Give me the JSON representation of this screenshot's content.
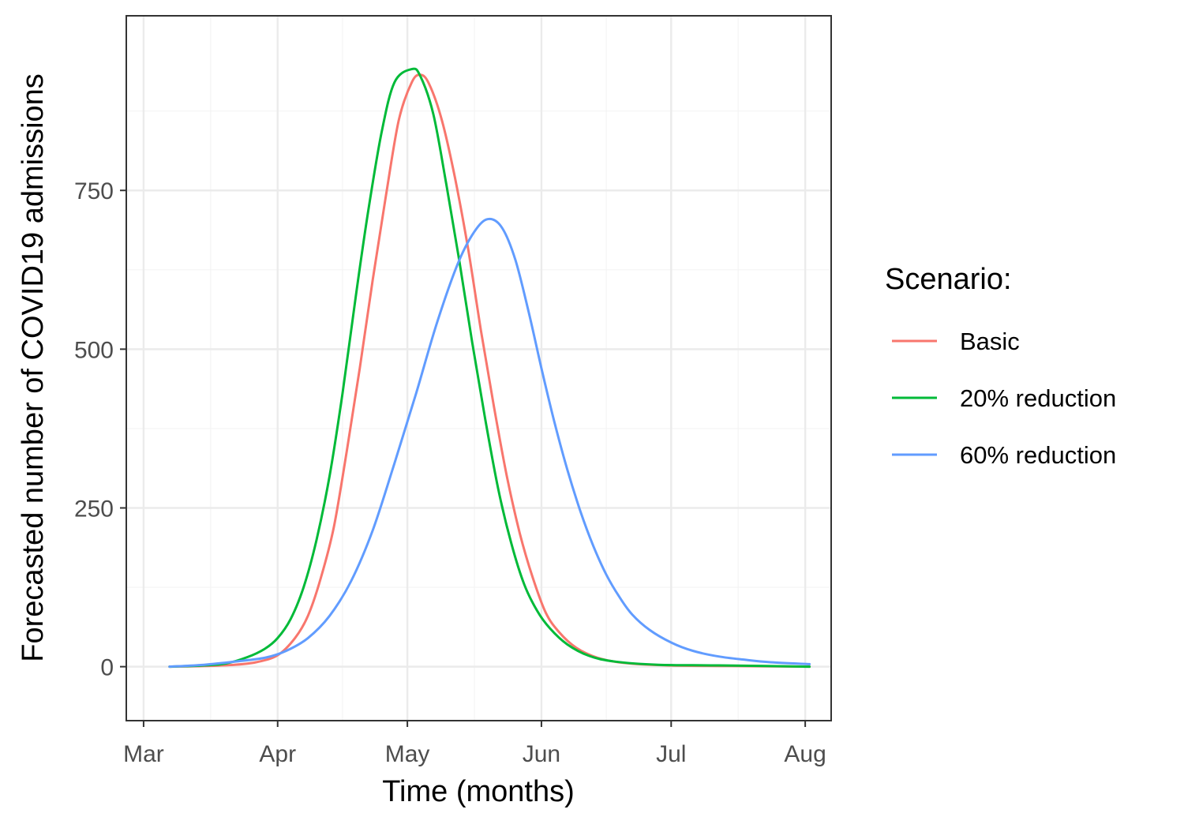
{
  "chart_data": {
    "type": "line",
    "xlabel": "Time (months)",
    "ylabel": "Forecasted number of COVID19 admissions",
    "x_axis": {
      "scale": "date",
      "range": [
        "2020-02-26",
        "2020-08-07"
      ],
      "ticks": [
        {
          "date": "2020-03-01",
          "label": "Mar"
        },
        {
          "date": "2020-04-01",
          "label": "Apr"
        },
        {
          "date": "2020-05-01",
          "label": "May"
        },
        {
          "date": "2020-06-01",
          "label": "Jun"
        },
        {
          "date": "2020-07-01",
          "label": "Jul"
        },
        {
          "date": "2020-08-01",
          "label": "Aug"
        }
      ]
    },
    "y_axis": {
      "range": [
        -85,
        1025
      ],
      "ticks": [
        0,
        250,
        500,
        750
      ],
      "tick_labels": [
        "0",
        "250",
        "500",
        "750"
      ]
    },
    "grid": true,
    "legend": {
      "title": "Scenario:",
      "position": "right"
    },
    "series": [
      {
        "name": "Basic",
        "color": "#F8766D",
        "points": [
          [
            "2020-03-07",
            0
          ],
          [
            "2020-03-15",
            1
          ],
          [
            "2020-03-22",
            3
          ],
          [
            "2020-03-27",
            7
          ],
          [
            "2020-04-01",
            18
          ],
          [
            "2020-04-05",
            45
          ],
          [
            "2020-04-08",
            80
          ],
          [
            "2020-04-11",
            140
          ],
          [
            "2020-04-14",
            220
          ],
          [
            "2020-04-17",
            340
          ],
          [
            "2020-04-20",
            470
          ],
          [
            "2020-04-23",
            610
          ],
          [
            "2020-04-26",
            740
          ],
          [
            "2020-04-29",
            860
          ],
          [
            "2020-05-02",
            920
          ],
          [
            "2020-05-04",
            932
          ],
          [
            "2020-05-06",
            918
          ],
          [
            "2020-05-09",
            860
          ],
          [
            "2020-05-12",
            770
          ],
          [
            "2020-05-15",
            660
          ],
          [
            "2020-05-18",
            530
          ],
          [
            "2020-05-21",
            410
          ],
          [
            "2020-05-24",
            300
          ],
          [
            "2020-05-27",
            210
          ],
          [
            "2020-05-30",
            140
          ],
          [
            "2020-06-02",
            85
          ],
          [
            "2020-06-05",
            55
          ],
          [
            "2020-06-09",
            30
          ],
          [
            "2020-06-14",
            14
          ],
          [
            "2020-06-20",
            6
          ],
          [
            "2020-06-30",
            2
          ],
          [
            "2020-07-15",
            1
          ],
          [
            "2020-08-02",
            0
          ]
        ]
      },
      {
        "name": "20% reduction",
        "color": "#00BA38",
        "points": [
          [
            "2020-03-07",
            0
          ],
          [
            "2020-03-15",
            2
          ],
          [
            "2020-03-20",
            5
          ],
          [
            "2020-03-25",
            15
          ],
          [
            "2020-03-29",
            28
          ],
          [
            "2020-04-01",
            45
          ],
          [
            "2020-04-04",
            75
          ],
          [
            "2020-04-07",
            125
          ],
          [
            "2020-04-10",
            200
          ],
          [
            "2020-04-13",
            300
          ],
          [
            "2020-04-16",
            430
          ],
          [
            "2020-04-19",
            580
          ],
          [
            "2020-04-22",
            720
          ],
          [
            "2020-04-25",
            840
          ],
          [
            "2020-04-28",
            920
          ],
          [
            "2020-05-02",
            941
          ],
          [
            "2020-05-04",
            930
          ],
          [
            "2020-05-07",
            870
          ],
          [
            "2020-05-10",
            760
          ],
          [
            "2020-05-13",
            640
          ],
          [
            "2020-05-16",
            510
          ],
          [
            "2020-05-19",
            390
          ],
          [
            "2020-05-22",
            280
          ],
          [
            "2020-05-25",
            195
          ],
          [
            "2020-05-28",
            130
          ],
          [
            "2020-05-31",
            88
          ],
          [
            "2020-06-03",
            60
          ],
          [
            "2020-06-07",
            35
          ],
          [
            "2020-06-12",
            17
          ],
          [
            "2020-06-18",
            8
          ],
          [
            "2020-06-28",
            3
          ],
          [
            "2020-07-12",
            2
          ],
          [
            "2020-08-02",
            0
          ]
        ]
      },
      {
        "name": "60% reduction",
        "color": "#619CFF",
        "points": [
          [
            "2020-03-07",
            0
          ],
          [
            "2020-03-15",
            3
          ],
          [
            "2020-03-22",
            8
          ],
          [
            "2020-03-29",
            14
          ],
          [
            "2020-04-03",
            25
          ],
          [
            "2020-04-08",
            45
          ],
          [
            "2020-04-13",
            80
          ],
          [
            "2020-04-18",
            135
          ],
          [
            "2020-04-23",
            215
          ],
          [
            "2020-04-28",
            320
          ],
          [
            "2020-05-03",
            430
          ],
          [
            "2020-05-08",
            545
          ],
          [
            "2020-05-13",
            640
          ],
          [
            "2020-05-17",
            690
          ],
          [
            "2020-05-20",
            705
          ],
          [
            "2020-05-23",
            690
          ],
          [
            "2020-05-26",
            640
          ],
          [
            "2020-05-29",
            560
          ],
          [
            "2020-06-01",
            470
          ],
          [
            "2020-06-04",
            385
          ],
          [
            "2020-06-07",
            310
          ],
          [
            "2020-06-10",
            245
          ],
          [
            "2020-06-13",
            190
          ],
          [
            "2020-06-16",
            145
          ],
          [
            "2020-06-19",
            110
          ],
          [
            "2020-06-22",
            82
          ],
          [
            "2020-06-26",
            58
          ],
          [
            "2020-07-01",
            38
          ],
          [
            "2020-07-06",
            25
          ],
          [
            "2020-07-12",
            16
          ],
          [
            "2020-07-18",
            11
          ],
          [
            "2020-07-24",
            7
          ],
          [
            "2020-08-02",
            4
          ]
        ]
      }
    ]
  }
}
